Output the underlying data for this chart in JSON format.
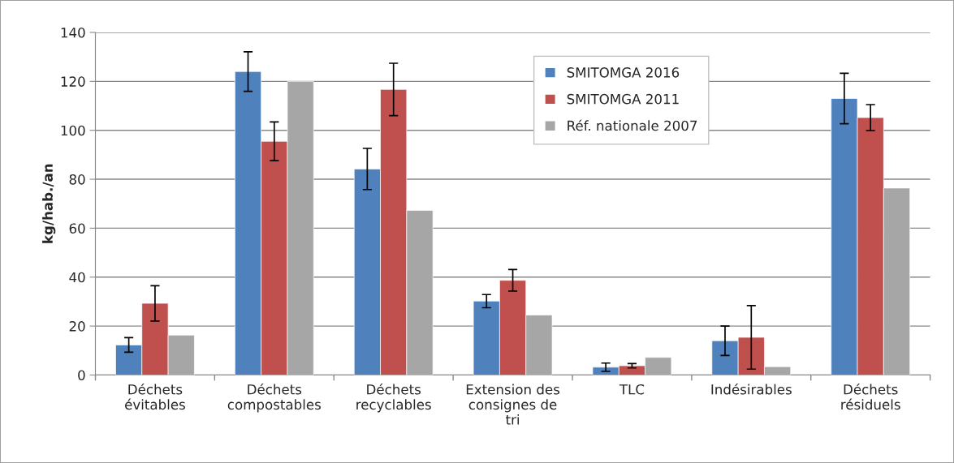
{
  "chart_data": {
    "type": "bar",
    "ylabel": "kg/hab./an",
    "categories": [
      "Déchets évitables",
      "Déchets compostables",
      "Déchets recyclables",
      "Extension des consignes de tri",
      "TLC",
      "Indésirables",
      "Déchets résiduels"
    ],
    "series": [
      {
        "name": "SMITOMGA 2016",
        "color": "#4f81bd",
        "values": [
          12.3,
          124,
          84.2,
          30.2,
          3.2,
          14,
          113
        ],
        "errors": [
          3,
          8.1,
          8.4,
          2.7,
          1.7,
          6,
          10.3
        ]
      },
      {
        "name": "SMITOMGA 2011",
        "color": "#c0504d",
        "values": [
          29.3,
          95.5,
          116.7,
          38.7,
          3.8,
          15.4,
          105.2
        ],
        "errors": [
          7.2,
          7.9,
          10.7,
          4.4,
          0.9,
          13,
          5.3
        ]
      },
      {
        "name": "Réf. nationale 2007",
        "color": "#a6a6a6",
        "values": [
          16.3,
          120,
          67.3,
          24.5,
          7.2,
          3.4,
          76.4
        ]
      }
    ],
    "ylim": [
      0,
      140
    ],
    "yticks": [
      0,
      20,
      40,
      60,
      80,
      100,
      120,
      140
    ],
    "grid": "y",
    "legend": "top"
  }
}
